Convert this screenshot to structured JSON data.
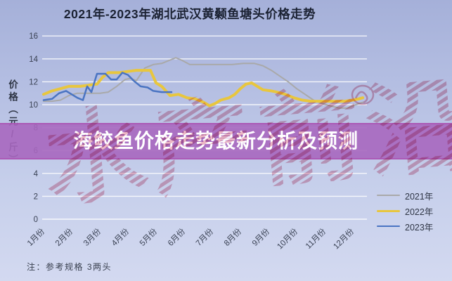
{
  "page": {
    "background_top": "#a5b0d9",
    "background_bottom": "#d3d9f0"
  },
  "banner": {
    "text": "海鲛鱼价格走势最新分析及预测",
    "background": "#a767bf",
    "text_color": "#ffffff"
  },
  "watermark": {
    "text": "水产前沿",
    "color": "#dd7b95"
  },
  "note": "注：参考规格  3两头",
  "chart_data": {
    "type": "line",
    "title": "2021年-2023年湖北武汉黄颡鱼塘头价格走势",
    "ylabel": "价格（元/斤）",
    "ylim": [
      0,
      16
    ],
    "ytick_step": 2,
    "grid": true,
    "gridline_color": "#ffffff",
    "legend_position": "bottom-right",
    "x_unit": "month",
    "categories": [
      "1月份",
      "2月份",
      "3月份",
      "4月份",
      "5月份",
      "6月份",
      "7月份",
      "8月份",
      "9月份",
      "10月份",
      "11月份",
      "12月份"
    ],
    "series": [
      {
        "name": "2021年",
        "color": "#a9a9a9",
        "line_width": 2,
        "points": [
          [
            0.9,
            10.3
          ],
          [
            1.2,
            10.3
          ],
          [
            1.5,
            10.4
          ],
          [
            1.8,
            10.8
          ],
          [
            2.1,
            11.0
          ],
          [
            2.5,
            11.0
          ],
          [
            2.9,
            11.0
          ],
          [
            3.2,
            11.1
          ],
          [
            3.5,
            11.6
          ],
          [
            3.8,
            12.2
          ],
          [
            4.0,
            12.3
          ],
          [
            4.2,
            12.1
          ],
          [
            4.5,
            13.2
          ],
          [
            4.8,
            13.5
          ],
          [
            5.1,
            13.6
          ],
          [
            5.4,
            13.9
          ],
          [
            5.6,
            14.1
          ],
          [
            5.8,
            13.9
          ],
          [
            6.1,
            13.5
          ],
          [
            6.6,
            13.5
          ],
          [
            7.1,
            13.5
          ],
          [
            7.6,
            13.5
          ],
          [
            8.0,
            13.6
          ],
          [
            8.4,
            13.6
          ],
          [
            8.7,
            13.4
          ],
          [
            9.0,
            13.0
          ],
          [
            9.3,
            12.5
          ],
          [
            9.6,
            12.0
          ],
          [
            9.9,
            11.4
          ],
          [
            10.2,
            10.9
          ],
          [
            10.5,
            10.4
          ],
          [
            10.8,
            10.1
          ],
          [
            11.1,
            9.9
          ],
          [
            11.4,
            9.7
          ],
          [
            11.7,
            9.7
          ],
          [
            12.0,
            10.0
          ],
          [
            12.25,
            10.2
          ]
        ]
      },
      {
        "name": "2022年",
        "color": "#e8c63e",
        "line_width": 4,
        "points": [
          [
            0.9,
            10.9
          ],
          [
            1.2,
            11.2
          ],
          [
            1.5,
            11.4
          ],
          [
            1.8,
            11.6
          ],
          [
            2.2,
            11.6
          ],
          [
            2.5,
            11.7
          ],
          [
            2.8,
            11.8
          ],
          [
            3.0,
            12.4
          ],
          [
            3.2,
            12.8
          ],
          [
            3.6,
            12.8
          ],
          [
            3.9,
            12.9
          ],
          [
            4.2,
            13.0
          ],
          [
            4.7,
            13.0
          ],
          [
            4.9,
            11.9
          ],
          [
            5.1,
            11.6
          ],
          [
            5.4,
            10.8
          ],
          [
            5.7,
            10.9
          ],
          [
            6.0,
            10.6
          ],
          [
            6.3,
            10.5
          ],
          [
            6.6,
            10.2
          ],
          [
            6.8,
            9.9
          ],
          [
            7.0,
            10.1
          ],
          [
            7.2,
            10.4
          ],
          [
            7.5,
            10.6
          ],
          [
            7.7,
            10.9
          ],
          [
            7.9,
            11.4
          ],
          [
            8.1,
            11.8
          ],
          [
            8.3,
            11.9
          ],
          [
            8.5,
            11.6
          ],
          [
            8.7,
            11.3
          ],
          [
            9.0,
            11.2
          ],
          [
            9.2,
            11.1
          ],
          [
            9.5,
            10.9
          ],
          [
            9.8,
            10.6
          ],
          [
            10.1,
            10.4
          ],
          [
            10.4,
            10.3
          ],
          [
            10.8,
            10.3
          ],
          [
            11.2,
            10.3
          ],
          [
            11.6,
            10.3
          ],
          [
            11.9,
            10.4
          ],
          [
            12.1,
            10.5
          ],
          [
            12.25,
            10.6
          ]
        ]
      },
      {
        "name": "2023年",
        "color": "#4a74c2",
        "line_width": 2.5,
        "points": [
          [
            0.9,
            10.4
          ],
          [
            1.2,
            10.5
          ],
          [
            1.45,
            11.0
          ],
          [
            1.7,
            11.2
          ],
          [
            1.9,
            10.9
          ],
          [
            2.1,
            10.6
          ],
          [
            2.3,
            10.4
          ],
          [
            2.45,
            11.6
          ],
          [
            2.6,
            11.1
          ],
          [
            2.8,
            12.7
          ],
          [
            3.1,
            12.7
          ],
          [
            3.3,
            12.2
          ],
          [
            3.5,
            12.2
          ],
          [
            3.7,
            12.8
          ],
          [
            3.9,
            12.6
          ],
          [
            4.1,
            12.1
          ],
          [
            4.35,
            11.6
          ],
          [
            4.6,
            11.5
          ],
          [
            4.8,
            11.2
          ],
          [
            5.1,
            11.1
          ],
          [
            5.45,
            11.1
          ]
        ]
      }
    ]
  }
}
